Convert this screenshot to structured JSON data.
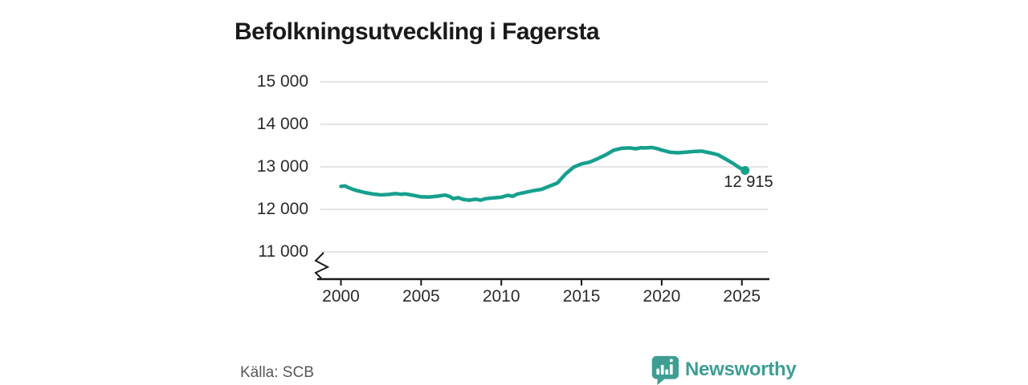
{
  "title": "Befolkningsutveckling i Fagersta",
  "footer": {
    "source": "Källa: SCB",
    "brand": "Newsworthy"
  },
  "colors": {
    "line": "#16a08e",
    "dot": "#16a08e",
    "brand": "#3e9e93",
    "grid": "#dcdcdc",
    "axis": "#1a1a1a"
  },
  "chart_data": {
    "type": "line",
    "title": "Befolkningsutveckling i Fagersta",
    "source": "SCB",
    "x_label": "",
    "y_label": "",
    "grid": "horizontal",
    "y_axis_break": true,
    "x_range": [
      2000,
      2026.8
    ],
    "y_range_shown": [
      11000,
      15000
    ],
    "x_ticks": [
      {
        "value": 2000,
        "label": "2000"
      },
      {
        "value": 2005,
        "label": "2005"
      },
      {
        "value": 2010,
        "label": "2010"
      },
      {
        "value": 2015,
        "label": "2015"
      },
      {
        "value": 2020,
        "label": "2020"
      },
      {
        "value": 2025,
        "label": "2025"
      }
    ],
    "y_ticks": [
      {
        "value": 15000,
        "label": "15 000"
      },
      {
        "value": 14000,
        "label": "14 000"
      },
      {
        "value": 13000,
        "label": "13 000"
      },
      {
        "value": 12000,
        "label": "12 000"
      },
      {
        "value": 11000,
        "label": "11 000"
      }
    ],
    "end_point": {
      "x": 2025.2,
      "y": 12915,
      "label": "12 915"
    },
    "series": [
      {
        "name": "Befolkning i Fagersta",
        "points": [
          [
            2000.0,
            12540
          ],
          [
            2000.25,
            12550
          ],
          [
            2000.5,
            12505
          ],
          [
            2000.75,
            12470
          ],
          [
            2001.0,
            12440
          ],
          [
            2001.5,
            12395
          ],
          [
            2002.0,
            12360
          ],
          [
            2002.5,
            12340
          ],
          [
            2003.0,
            12350
          ],
          [
            2003.4,
            12370
          ],
          [
            2003.75,
            12355
          ],
          [
            2004.0,
            12365
          ],
          [
            2004.5,
            12330
          ],
          [
            2005.0,
            12295
          ],
          [
            2005.5,
            12290
          ],
          [
            2006.0,
            12310
          ],
          [
            2006.5,
            12335
          ],
          [
            2006.8,
            12300
          ],
          [
            2007.0,
            12250
          ],
          [
            2007.3,
            12275
          ],
          [
            2007.6,
            12235
          ],
          [
            2008.0,
            12215
          ],
          [
            2008.4,
            12240
          ],
          [
            2008.7,
            12215
          ],
          [
            2009.0,
            12250
          ],
          [
            2009.5,
            12270
          ],
          [
            2010.0,
            12285
          ],
          [
            2010.4,
            12330
          ],
          [
            2010.7,
            12305
          ],
          [
            2011.0,
            12360
          ],
          [
            2011.5,
            12400
          ],
          [
            2012.0,
            12440
          ],
          [
            2012.5,
            12470
          ],
          [
            2013.0,
            12545
          ],
          [
            2013.5,
            12620
          ],
          [
            2014.0,
            12830
          ],
          [
            2014.5,
            12990
          ],
          [
            2015.0,
            13070
          ],
          [
            2015.5,
            13110
          ],
          [
            2016.0,
            13190
          ],
          [
            2016.5,
            13280
          ],
          [
            2017.0,
            13390
          ],
          [
            2017.5,
            13435
          ],
          [
            2018.0,
            13445
          ],
          [
            2018.4,
            13425
          ],
          [
            2018.7,
            13450
          ],
          [
            2019.0,
            13445
          ],
          [
            2019.4,
            13455
          ],
          [
            2019.7,
            13430
          ],
          [
            2020.0,
            13395
          ],
          [
            2020.5,
            13345
          ],
          [
            2021.0,
            13330
          ],
          [
            2021.5,
            13345
          ],
          [
            2022.0,
            13360
          ],
          [
            2022.5,
            13370
          ],
          [
            2023.0,
            13330
          ],
          [
            2023.5,
            13285
          ],
          [
            2024.0,
            13180
          ],
          [
            2024.5,
            13070
          ],
          [
            2024.8,
            12990
          ],
          [
            2025.0,
            12950
          ],
          [
            2025.1,
            12905
          ],
          [
            2025.2,
            12915
          ]
        ]
      }
    ]
  }
}
